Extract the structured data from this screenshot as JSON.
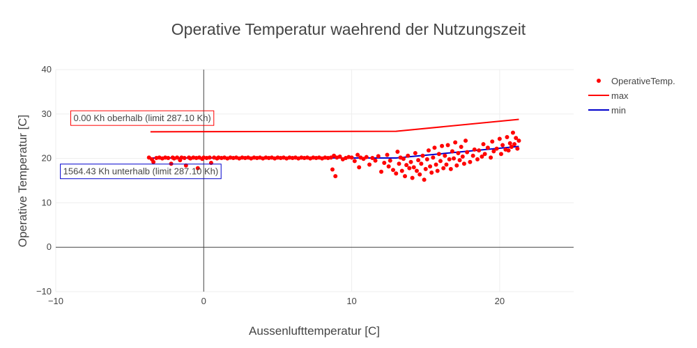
{
  "chart_data": {
    "type": "scatter",
    "title": "Operative Temperatur waehrend der Nutzungszeit",
    "xlabel": "Aussenlufttemperatur [C]",
    "ylabel": "Operative Temperatur [C]",
    "xlim": [
      -10,
      25
    ],
    "ylim": [
      -10,
      40
    ],
    "x_ticks": [
      -10,
      0,
      10,
      20
    ],
    "y_ticks": [
      -10,
      0,
      10,
      20,
      30,
      40
    ],
    "x_tick_labels": [
      "−10",
      "0",
      "10",
      "20"
    ],
    "y_tick_labels": [
      "−10",
      "0",
      "10",
      "20",
      "30",
      "40"
    ],
    "grid": true,
    "legend_position": "top-right",
    "colors": {
      "scatter": "#ff0000",
      "max": "#ff0000",
      "min": "#0000cc",
      "grid": "#eeeeee",
      "zeroline": "#444444"
    },
    "series": [
      {
        "name": "OperativeTemp.",
        "kind": "scatter",
        "points": [
          [
            -3.7,
            20.2
          ],
          [
            -3.5,
            19.8
          ],
          [
            -3.4,
            19.2
          ],
          [
            -3.2,
            20.1
          ],
          [
            -3.0,
            20.2
          ],
          [
            -2.8,
            20.0
          ],
          [
            -2.6,
            20.2
          ],
          [
            -2.4,
            20.1
          ],
          [
            -2.2,
            18.8
          ],
          [
            -2.1,
            20.2
          ],
          [
            -2.0,
            20.0
          ],
          [
            -1.8,
            20.2
          ],
          [
            -1.6,
            19.6
          ],
          [
            -1.5,
            20.2
          ],
          [
            -1.3,
            20.1
          ],
          [
            -1.2,
            18.4
          ],
          [
            -1.0,
            20.2
          ],
          [
            -0.9,
            20.0
          ],
          [
            -0.7,
            20.2
          ],
          [
            -0.5,
            20.1
          ],
          [
            -0.4,
            17.8
          ],
          [
            -0.3,
            20.2
          ],
          [
            -0.1,
            19.9
          ],
          [
            0.0,
            20.2
          ],
          [
            0.2,
            20.1
          ],
          [
            0.4,
            20.2
          ],
          [
            0.5,
            19.0
          ],
          [
            0.7,
            20.2
          ],
          [
            0.9,
            20.0
          ],
          [
            1.0,
            20.2
          ],
          [
            1.2,
            20.1
          ],
          [
            1.4,
            20.2
          ],
          [
            1.6,
            20.0
          ],
          [
            1.8,
            20.2
          ],
          [
            2.0,
            20.1
          ],
          [
            2.2,
            20.2
          ],
          [
            2.4,
            20.0
          ],
          [
            2.6,
            20.2
          ],
          [
            2.8,
            20.1
          ],
          [
            3.0,
            20.2
          ],
          [
            3.2,
            20.0
          ],
          [
            3.4,
            20.2
          ],
          [
            3.6,
            20.1
          ],
          [
            3.8,
            20.2
          ],
          [
            4.0,
            20.0
          ],
          [
            4.2,
            20.2
          ],
          [
            4.4,
            20.1
          ],
          [
            4.6,
            20.2
          ],
          [
            4.8,
            20.0
          ],
          [
            5.0,
            20.2
          ],
          [
            5.2,
            20.1
          ],
          [
            5.4,
            20.2
          ],
          [
            5.6,
            20.0
          ],
          [
            5.8,
            20.2
          ],
          [
            6.0,
            20.1
          ],
          [
            6.2,
            20.2
          ],
          [
            6.4,
            20.0
          ],
          [
            6.6,
            20.2
          ],
          [
            6.8,
            20.1
          ],
          [
            7.0,
            20.2
          ],
          [
            7.2,
            20.0
          ],
          [
            7.4,
            20.2
          ],
          [
            7.6,
            20.1
          ],
          [
            7.8,
            20.2
          ],
          [
            8.0,
            20.0
          ],
          [
            8.2,
            20.2
          ],
          [
            8.4,
            20.1
          ],
          [
            8.6,
            20.2
          ],
          [
            8.7,
            17.5
          ],
          [
            8.8,
            20.6
          ],
          [
            8.9,
            16.0
          ],
          [
            9.0,
            20.2
          ],
          [
            9.2,
            20.4
          ],
          [
            9.4,
            19.8
          ],
          [
            9.6,
            20.1
          ],
          [
            9.8,
            20.3
          ],
          [
            10.0,
            20.2
          ],
          [
            10.2,
            19.4
          ],
          [
            10.4,
            20.8
          ],
          [
            10.5,
            18.0
          ],
          [
            10.6,
            20.2
          ],
          [
            10.8,
            19.9
          ],
          [
            11.0,
            20.3
          ],
          [
            11.2,
            18.6
          ],
          [
            11.4,
            20.1
          ],
          [
            11.6,
            19.5
          ],
          [
            11.8,
            20.5
          ],
          [
            12.0,
            17.0
          ],
          [
            12.2,
            19.0
          ],
          [
            12.4,
            20.8
          ],
          [
            12.5,
            18.2
          ],
          [
            12.6,
            19.5
          ],
          [
            12.8,
            17.4
          ],
          [
            13.0,
            16.6
          ],
          [
            13.1,
            21.5
          ],
          [
            13.2,
            18.8
          ],
          [
            13.3,
            20.2
          ],
          [
            13.4,
            17.2
          ],
          [
            13.5,
            19.9
          ],
          [
            13.6,
            16.0
          ],
          [
            13.7,
            18.5
          ],
          [
            13.8,
            20.6
          ],
          [
            13.9,
            17.8
          ],
          [
            14.0,
            19.2
          ],
          [
            14.1,
            15.6
          ],
          [
            14.2,
            18.0
          ],
          [
            14.3,
            21.2
          ],
          [
            14.4,
            17.2
          ],
          [
            14.5,
            19.6
          ],
          [
            14.6,
            16.4
          ],
          [
            14.7,
            18.8
          ],
          [
            14.8,
            20.6
          ],
          [
            14.9,
            15.2
          ],
          [
            15.0,
            17.6
          ],
          [
            15.1,
            19.8
          ],
          [
            15.2,
            21.8
          ],
          [
            15.3,
            18.2
          ],
          [
            15.4,
            16.8
          ],
          [
            15.5,
            20.2
          ],
          [
            15.6,
            22.4
          ],
          [
            15.7,
            18.6
          ],
          [
            15.8,
            17.2
          ],
          [
            15.9,
            21.0
          ],
          [
            16.0,
            19.4
          ],
          [
            16.1,
            22.8
          ],
          [
            16.2,
            17.8
          ],
          [
            16.3,
            20.6
          ],
          [
            16.4,
            18.6
          ],
          [
            16.5,
            23.0
          ],
          [
            16.6,
            19.8
          ],
          [
            16.7,
            17.6
          ],
          [
            16.8,
            21.6
          ],
          [
            16.9,
            20.0
          ],
          [
            17.0,
            23.6
          ],
          [
            17.1,
            18.4
          ],
          [
            17.2,
            21.2
          ],
          [
            17.3,
            19.6
          ],
          [
            17.4,
            22.6
          ],
          [
            17.5,
            20.4
          ],
          [
            17.6,
            18.8
          ],
          [
            17.7,
            24.0
          ],
          [
            17.8,
            21.4
          ],
          [
            18.0,
            19.2
          ],
          [
            18.2,
            20.6
          ],
          [
            18.3,
            22.0
          ],
          [
            18.5,
            19.8
          ],
          [
            18.6,
            21.8
          ],
          [
            18.8,
            20.4
          ],
          [
            18.9,
            23.2
          ],
          [
            19.0,
            21.0
          ],
          [
            19.2,
            22.4
          ],
          [
            19.4,
            20.2
          ],
          [
            19.5,
            23.8
          ],
          [
            19.6,
            21.6
          ],
          [
            19.8,
            22.2
          ],
          [
            20.0,
            24.4
          ],
          [
            20.1,
            21.0
          ],
          [
            20.2,
            23.0
          ],
          [
            20.4,
            22.0
          ],
          [
            20.5,
            24.8
          ],
          [
            20.6,
            21.8
          ],
          [
            20.7,
            23.4
          ],
          [
            20.8,
            22.6
          ],
          [
            20.9,
            25.8
          ],
          [
            21.0,
            23.2
          ],
          [
            21.1,
            24.6
          ],
          [
            21.2,
            22.2
          ],
          [
            21.3,
            24.0
          ]
        ]
      },
      {
        "name": "max",
        "kind": "line",
        "x": [
          -3.6,
          13.0,
          21.3
        ],
        "y": [
          26.0,
          26.1,
          28.8
        ]
      },
      {
        "name": "min",
        "kind": "line",
        "x": [
          -3.6,
          13.0,
          21.3
        ],
        "y": [
          20.1,
          20.1,
          22.7
        ]
      }
    ],
    "annotations": [
      {
        "text": "0.00 Kh oberhalb (limit 287.10 Kh)",
        "x": -8.8,
        "y": 29.0,
        "border_color": "#ff0000"
      },
      {
        "text": "1564.43 Kh unterhalb (limit 287.10 Kh)",
        "x": -9.5,
        "y": 17.0,
        "border_color": "#0000cc"
      }
    ]
  }
}
